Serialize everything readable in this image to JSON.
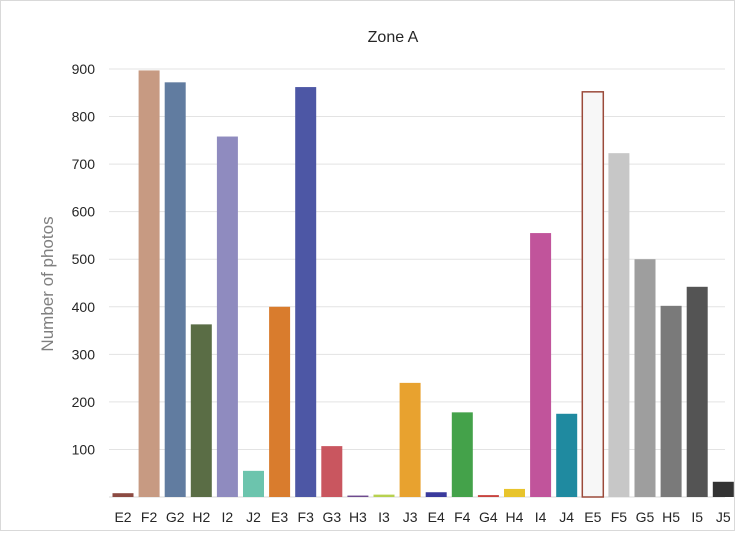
{
  "chart_data": {
    "type": "bar",
    "title": "Zone A",
    "xlabel": "",
    "ylabel": "Number of photos",
    "ylim": [
      0,
      900
    ],
    "yticks": [
      100,
      200,
      300,
      400,
      500,
      600,
      700,
      800,
      900
    ],
    "grid": true,
    "legend": "none",
    "categories": [
      "E2",
      "F2",
      "G2",
      "H2",
      "I2",
      "J2",
      "E3",
      "F3",
      "G3",
      "H3",
      "I3",
      "J3",
      "E4",
      "F4",
      "G4",
      "H4",
      "I4",
      "J4",
      "E5",
      "F5",
      "G5",
      "H5",
      "I5",
      "J5"
    ],
    "values": [
      8,
      897,
      872,
      363,
      758,
      55,
      400,
      862,
      107,
      3,
      5,
      240,
      10,
      178,
      4,
      17,
      555,
      175,
      852,
      723,
      500,
      402,
      442,
      32
    ],
    "colors": [
      "#8c4a42",
      "#c79a82",
      "#617ca0",
      "#5a6d45",
      "#8f8bbf",
      "#6cc4ad",
      "#d97c2d",
      "#4d57a5",
      "#c9565f",
      "#6e4a8e",
      "#b7d14f",
      "#e8a22f",
      "#3a3a9c",
      "#44a24a",
      "#c8443f",
      "#e8c42c",
      "#c1549b",
      "#1f8aa0",
      "#f7f7f7",
      "#c7c7c7",
      "#9e9e9e",
      "#7a7a7a",
      "#545454",
      "#333333"
    ],
    "outline_colors": [
      "",
      "",
      "",
      "",
      "",
      "",
      "",
      "",
      "",
      "",
      "",
      "",
      "",
      "",
      "",
      "",
      "",
      "",
      "#9b4a3a",
      "",
      "",
      "",
      "",
      ""
    ]
  }
}
